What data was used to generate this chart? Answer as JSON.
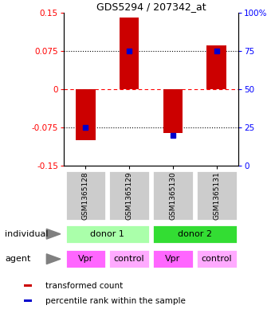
{
  "title": "GDS5294 / 207342_at",
  "samples": [
    "GSM1365128",
    "GSM1365129",
    "GSM1365130",
    "GSM1365131"
  ],
  "bar_values": [
    -0.1,
    0.14,
    -0.085,
    0.085
  ],
  "percentile_values": [
    -0.075,
    0.075,
    -0.09,
    0.075
  ],
  "ylim": [
    -0.15,
    0.15
  ],
  "left_yticks": [
    -0.15,
    -0.075,
    0,
    0.075,
    0.15
  ],
  "left_yticklabels": [
    "-0.15",
    "-0.075",
    "0",
    "0.075",
    "0.15"
  ],
  "right_yticklabels": [
    "0",
    "25",
    "50",
    "75",
    "100%"
  ],
  "right_ytick_positions": [
    -0.15,
    -0.075,
    0.0,
    0.075,
    0.15
  ],
  "hlines": [
    -0.075,
    0,
    0.075
  ],
  "hline_styles": [
    "dotted",
    "dashed",
    "dotted"
  ],
  "bar_color": "#CC0000",
  "percentile_color": "#0000CC",
  "donor1_color": "#AAFFAA",
  "donor2_color": "#33DD33",
  "agent_vpr_color": "#FF66FF",
  "agent_control_color": "#FFAAFF",
  "sample_box_color": "#CCCCCC",
  "agents": [
    "Vpr",
    "control",
    "Vpr",
    "control"
  ],
  "legend_red_label": "transformed count",
  "legend_blue_label": "percentile rank within the sample",
  "label_individual": "individual",
  "label_agent": "agent"
}
